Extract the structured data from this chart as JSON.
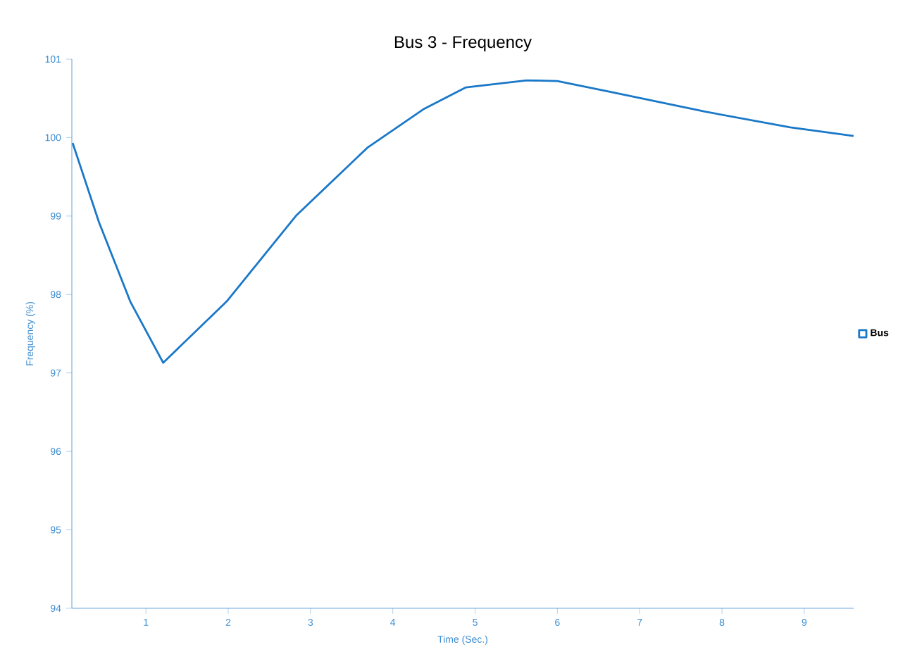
{
  "chart_data": {
    "type": "line",
    "title": "Bus 3 - Frequency",
    "xlabel": "Time (Sec.)",
    "ylabel": "Frequency (%)",
    "xlim": [
      0.1,
      9.6
    ],
    "xticks": [
      1,
      2,
      3,
      4,
      5,
      6,
      7,
      8,
      9
    ],
    "ylim": [
      94,
      101
    ],
    "yticks": [
      94,
      95,
      96,
      97,
      98,
      99,
      100,
      101
    ],
    "legend": "right",
    "grid": false,
    "series": [
      {
        "name": "Bus",
        "color": "#1a78c8",
        "x": [
          0.11,
          0.43,
          0.81,
          1.21,
          1.98,
          2.83,
          3.69,
          4.37,
          4.89,
          5.63,
          6.0,
          6.66,
          7.8,
          8.83,
          9.6
        ],
        "values": [
          99.93,
          98.92,
          97.91,
          97.13,
          97.91,
          99.01,
          99.87,
          100.36,
          100.64,
          100.73,
          100.72,
          100.58,
          100.33,
          100.13,
          100.02
        ]
      }
    ]
  }
}
